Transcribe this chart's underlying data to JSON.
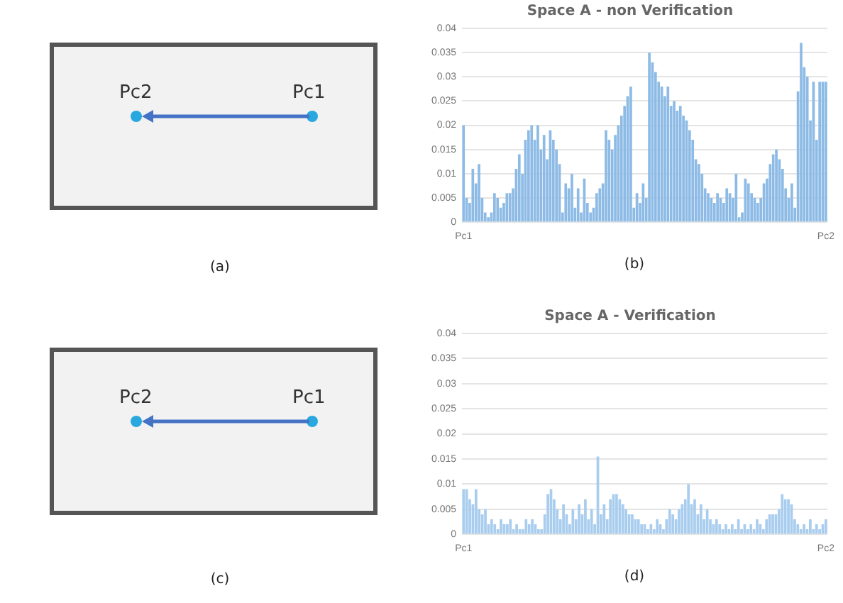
{
  "chart_data": [
    {
      "type": "other",
      "annotations": [
        "Pc2",
        "Pc1",
        "(a)"
      ]
    },
    {
      "type": "bar",
      "title": "Space A - non Verification",
      "color": "#8dbbe6",
      "ylim": [
        0,
        0.04
      ],
      "yticks": [
        0,
        0.005,
        0.01,
        0.015,
        0.02,
        0.025,
        0.03,
        0.035,
        0.04
      ],
      "grid": "y",
      "annotations": [
        "(b)"
      ],
      "categories": [
        "Pc1",
        null,
        null,
        null,
        null,
        null,
        null,
        null,
        null,
        null,
        null,
        null,
        null,
        null,
        null,
        null,
        null,
        null,
        null,
        null,
        null,
        null,
        null,
        null,
        null,
        null,
        null,
        null,
        null,
        null,
        null,
        null,
        null,
        null,
        null,
        null,
        null,
        null,
        null,
        null,
        null,
        null,
        null,
        null,
        null,
        null,
        null,
        null,
        null,
        null,
        null,
        null,
        null,
        null,
        null,
        null,
        null,
        null,
        null,
        null,
        null,
        null,
        null,
        null,
        null,
        null,
        null,
        null,
        null,
        null,
        null,
        null,
        null,
        null,
        null,
        null,
        null,
        null,
        null,
        null,
        null,
        null,
        null,
        null,
        null,
        null,
        null,
        null,
        null,
        null,
        null,
        null,
        null,
        null,
        null,
        null,
        null,
        null,
        null,
        null,
        null,
        null,
        null,
        null,
        null,
        null,
        null,
        null,
        null,
        null,
        null,
        null,
        null,
        null,
        null,
        null,
        null,
        "Pc2"
      ],
      "values": [
        0.02,
        0.005,
        0.004,
        0.011,
        0.008,
        0.012,
        0.005,
        0.002,
        0.001,
        0.002,
        0.006,
        0.005,
        0.003,
        0.004,
        0.006,
        0.006,
        0.007,
        0.011,
        0.014,
        0.01,
        0.017,
        0.019,
        0.02,
        0.017,
        0.02,
        0.015,
        0.018,
        0.013,
        0.019,
        0.017,
        0.015,
        0.012,
        0.002,
        0.008,
        0.007,
        0.01,
        0.003,
        0.007,
        0.002,
        0.009,
        0.004,
        0.002,
        0.003,
        0.006,
        0.007,
        0.008,
        0.019,
        0.017,
        0.015,
        0.018,
        0.02,
        0.022,
        0.024,
        0.026,
        0.028,
        0.003,
        0.006,
        0.004,
        0.008,
        0.005,
        0.035,
        0.033,
        0.031,
        0.029,
        0.028,
        0.026,
        0.028,
        0.024,
        0.025,
        0.023,
        0.024,
        0.022,
        0.021,
        0.019,
        0.017,
        0.013,
        0.012,
        0.01,
        0.007,
        0.006,
        0.005,
        0.004,
        0.006,
        0.005,
        0.004,
        0.007,
        0.006,
        0.005,
        0.01,
        0.001,
        0.002,
        0.009,
        0.008,
        0.006,
        0.005,
        0.004,
        0.005,
        0.008,
        0.009,
        0.012,
        0.014,
        0.015,
        0.013,
        0.011,
        0.007,
        0.005,
        0.008,
        0.003,
        0.027,
        0.037,
        0.032,
        0.03,
        0.021,
        0.029,
        0.017,
        0.029,
        0.029,
        0.029
      ]
    },
    {
      "type": "other",
      "annotations": [
        "Pc2",
        "Pc1",
        "(c)"
      ]
    },
    {
      "type": "bar",
      "title": "Space A - Verification",
      "color": "#a9cdef",
      "ylim": [
        0,
        0.04
      ],
      "yticks": [
        0,
        0.005,
        0.01,
        0.015,
        0.02,
        0.025,
        0.03,
        0.035,
        0.04
      ],
      "grid": "y",
      "annotations": [
        "(d)"
      ],
      "categories": [
        "Pc1",
        null,
        null,
        null,
        null,
        null,
        null,
        null,
        null,
        null,
        null,
        null,
        null,
        null,
        null,
        null,
        null,
        null,
        null,
        null,
        null,
        null,
        null,
        null,
        null,
        null,
        null,
        null,
        null,
        null,
        null,
        null,
        null,
        null,
        null,
        null,
        null,
        null,
        null,
        null,
        null,
        null,
        null,
        null,
        null,
        null,
        null,
        null,
        null,
        null,
        null,
        null,
        null,
        null,
        null,
        null,
        null,
        null,
        null,
        null,
        null,
        null,
        null,
        null,
        null,
        null,
        null,
        null,
        null,
        null,
        null,
        null,
        null,
        null,
        null,
        null,
        null,
        null,
        null,
        null,
        null,
        null,
        null,
        null,
        null,
        null,
        null,
        null,
        null,
        null,
        null,
        null,
        null,
        null,
        null,
        null,
        null,
        null,
        null,
        null,
        null,
        null,
        null,
        null,
        null,
        null,
        null,
        null,
        null,
        null,
        null,
        null,
        null,
        null,
        null,
        null,
        "Pc2"
      ],
      "values": [
        0.009,
        0.009,
        0.007,
        0.006,
        0.009,
        0.005,
        0.004,
        0.005,
        0.002,
        0.003,
        0.002,
        0.001,
        0.003,
        0.002,
        0.002,
        0.003,
        0.001,
        0.002,
        0.001,
        0.001,
        0.003,
        0.002,
        0.003,
        0.002,
        0.001,
        0.001,
        0.004,
        0.008,
        0.009,
        0.007,
        0.005,
        0.003,
        0.006,
        0.004,
        0.002,
        0.005,
        0.003,
        0.006,
        0.004,
        0.007,
        0.003,
        0.005,
        0.002,
        0.0155,
        0.004,
        0.006,
        0.003,
        0.007,
        0.008,
        0.008,
        0.007,
        0.006,
        0.005,
        0.004,
        0.004,
        0.003,
        0.003,
        0.002,
        0.002,
        0.001,
        0.002,
        0.001,
        0.003,
        0.002,
        0.001,
        0.003,
        0.005,
        0.004,
        0.003,
        0.005,
        0.006,
        0.007,
        0.01,
        0.006,
        0.007,
        0.004,
        0.006,
        0.003,
        0.005,
        0.003,
        0.002,
        0.003,
        0.002,
        0.001,
        0.002,
        0.001,
        0.002,
        0.001,
        0.003,
        0.001,
        0.002,
        0.001,
        0.002,
        0.001,
        0.003,
        0.002,
        0.001,
        0.003,
        0.004,
        0.004,
        0.004,
        0.005,
        0.008,
        0.007,
        0.007,
        0.006,
        0.003,
        0.002,
        0.001,
        0.002,
        0.001,
        0.003,
        0.001,
        0.002,
        0.001,
        0.002,
        0.003
      ]
    }
  ]
}
